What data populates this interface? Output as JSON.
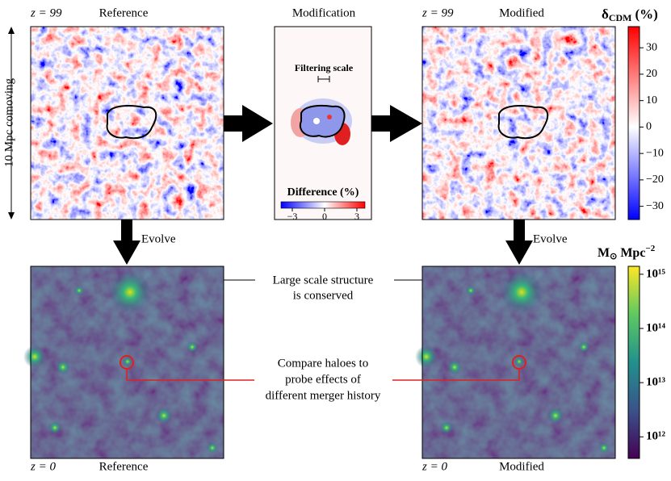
{
  "panels": {
    "top_left": {
      "redshift": "z = 99",
      "label": "Reference"
    },
    "top_right": {
      "redshift": "z = 99",
      "label": "Modified"
    },
    "bottom_left": {
      "redshift": "z = 0",
      "label": "Reference"
    },
    "bottom_right": {
      "redshift": "z = 0",
      "label": "Modified"
    }
  },
  "modification": {
    "title": "Modification",
    "filtering_scale": "Filtering scale",
    "colorbar": {
      "label": "Difference (%)",
      "lim": [
        -4.05,
        3.75
      ],
      "ticks": [
        {
          "value": -3,
          "label": "−3"
        },
        0,
        3
      ]
    }
  },
  "scale_label": "10 Mpc comoving",
  "evolve": [
    "Evolve",
    "Evolve"
  ],
  "annotations": {
    "large_scale": [
      "Large scale structure",
      "is conserved"
    ],
    "compare": [
      "Compare haloes to",
      "probe effects of",
      "different merger history"
    ]
  },
  "density_colorbar": {
    "symbol": "δ",
    "subscript": "CDM",
    "unit": "(%)",
    "lim": [
      -35,
      38
    ],
    "ticks": [
      30,
      20,
      10,
      0,
      {
        "value": -10,
        "label": "−10"
      },
      {
        "value": -20,
        "label": "−20"
      },
      {
        "value": -30,
        "label": "−30"
      }
    ]
  },
  "mass_colorbar": {
    "base": "M",
    "subscript": "⊙",
    "unit": "Mpc",
    "exponent": "−2",
    "log": true,
    "lim": [
      400000000000.0,
      1400000000000000.0
    ],
    "ticks": [
      {
        "value": 1000000000000.0,
        "label": "10¹²"
      },
      {
        "value": 10000000000000.0,
        "label": "10¹³"
      },
      {
        "value": 100000000000000.0,
        "label": "10¹⁴"
      },
      {
        "value": 1000000000000000.0,
        "label": "10¹⁵"
      }
    ]
  }
}
